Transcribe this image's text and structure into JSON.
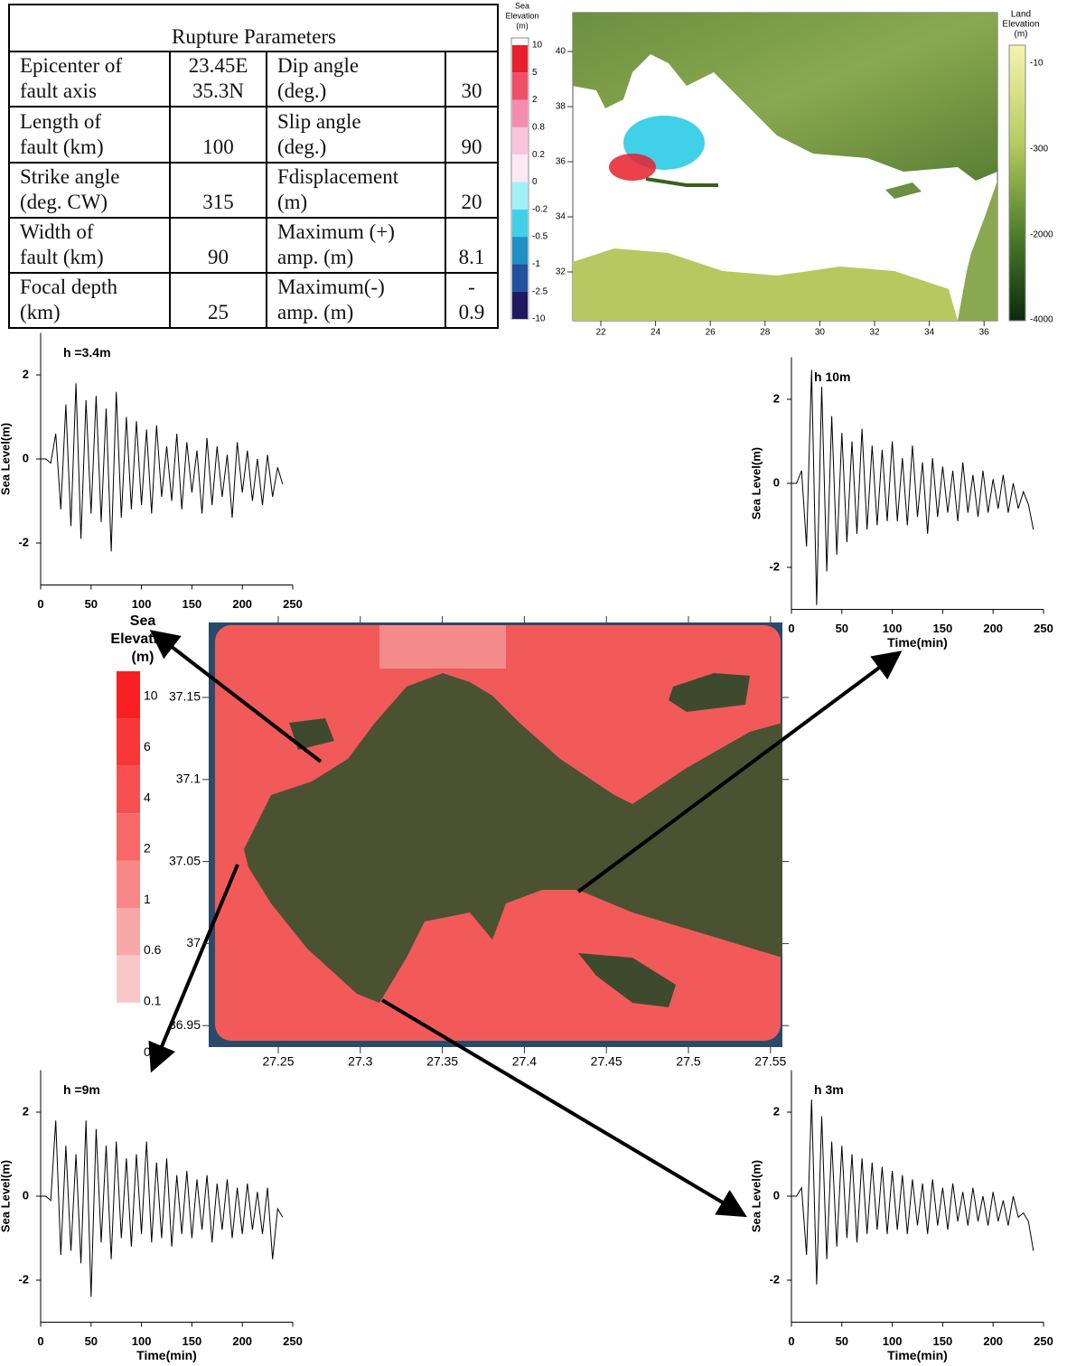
{
  "table": {
    "title": "Rupture Parameters",
    "rows": [
      [
        [
          "Epicenter of",
          "fault axis"
        ],
        [
          "23.45E",
          "35.3N"
        ],
        [
          "Dip angle",
          "(deg.)"
        ],
        [
          "30"
        ]
      ],
      [
        [
          "Length of",
          "fault (km)"
        ],
        [
          "100"
        ],
        [
          "Slip angle",
          "(deg.)"
        ],
        [
          "90"
        ]
      ],
      [
        [
          "Strike angle",
          "(deg. CW)"
        ],
        [
          "315"
        ],
        [
          "Fdisplacement",
          "(m)"
        ],
        [
          "20"
        ]
      ],
      [
        [
          "Width of",
          "fault (km)"
        ],
        [
          "90"
        ],
        [
          "Maximum (+)",
          "amp. (m)"
        ],
        [
          "8.1"
        ]
      ],
      [
        [
          "Focal depth",
          "(km)"
        ],
        [
          "25"
        ],
        [
          "Maximum(-)",
          "amp. (m)"
        ],
        [
          "-",
          "0.9"
        ]
      ]
    ]
  },
  "regional_map": {
    "sea_legend_title": [
      "Sea",
      "Elevation",
      "(m)"
    ],
    "sea_legend_labels": [
      "10",
      "5",
      "2",
      "0.8",
      "0.2",
      "0",
      "-0.2",
      "-0.5",
      "-1",
      "-2.5",
      "-10"
    ],
    "sea_legend_colors": [
      "#e8202c",
      "#f0506a",
      "#f48cb0",
      "#f8c4dc",
      "#fce8f2",
      "#a0f0f8",
      "#40d0e8",
      "#2090c8",
      "#2050a0",
      "#201860"
    ],
    "land_legend_title": [
      "Land",
      "Elevation",
      "(m)"
    ],
    "land_legend_labels": [
      "-10",
      "-300",
      "-2000",
      "-4000"
    ],
    "yticks": [
      "40",
      "38",
      "36",
      "34",
      "32"
    ],
    "xticks": [
      "22",
      "24",
      "26",
      "28",
      "30",
      "32",
      "34",
      "36"
    ]
  },
  "local_map": {
    "legend_title": [
      "Sea",
      "Elevation",
      "(m)"
    ],
    "legend_labels": [
      "10",
      "6",
      "4",
      "2",
      "1",
      "0.6",
      "0.1",
      "0"
    ],
    "legend_colors": [
      "#f82020",
      "#f83838",
      "#f85050",
      "#f86868",
      "#f88888",
      "#f8a8a8",
      "#f8c8c8"
    ],
    "yticks": [
      "37.15",
      "37.1",
      "37.05",
      "37",
      "36.95"
    ],
    "xticks": [
      "27.25",
      "27.3",
      "27.35",
      "27.4",
      "27.45",
      "27.5",
      "27.55"
    ]
  },
  "chart_data": [
    {
      "type": "line",
      "title": "h =3.4m",
      "ylabel": "Sea Level(m)",
      "color": "#000000",
      "x": [
        0,
        5,
        10,
        15,
        20,
        25,
        30,
        35,
        40,
        45,
        50,
        55,
        60,
        65,
        70,
        75,
        80,
        85,
        90,
        95,
        100,
        105,
        110,
        115,
        120,
        125,
        130,
        135,
        140,
        145,
        150,
        155,
        160,
        165,
        170,
        175,
        180,
        185,
        190,
        195,
        200,
        205,
        210,
        215,
        220,
        225,
        230,
        235,
        240
      ],
      "values": [
        0,
        0,
        -0.1,
        0.6,
        -1.2,
        1.3,
        -1.6,
        1.8,
        -1.9,
        1.4,
        -1.3,
        1.5,
        -1.5,
        1.2,
        -2.2,
        1.6,
        -1.4,
        1.0,
        -1.2,
        0.9,
        -1.1,
        0.7,
        -1.3,
        0.8,
        -0.9,
        0.3,
        -1.0,
        0.6,
        -1.2,
        0.4,
        -0.8,
        0.2,
        -1.3,
        0.5,
        -1.1,
        0.3,
        -0.9,
        0.1,
        -1.4,
        0.4,
        -0.8,
        0.2,
        -1.0,
        0.0,
        -1.1,
        0.1,
        -0.9,
        -0.2,
        -0.6
      ],
      "xlim": [
        0,
        250
      ],
      "xticks": [
        0,
        50,
        100,
        150,
        200,
        250
      ],
      "ylim": [
        -3,
        3
      ],
      "yticks": [
        -2,
        0,
        2
      ]
    },
    {
      "type": "line",
      "title": "h 10m",
      "xlabel": "Time(min)",
      "ylabel": "Sea Level(m)",
      "color": "#000000",
      "x": [
        0,
        5,
        10,
        15,
        20,
        25,
        30,
        35,
        40,
        45,
        50,
        55,
        60,
        65,
        70,
        75,
        80,
        85,
        90,
        95,
        100,
        105,
        110,
        115,
        120,
        125,
        130,
        135,
        140,
        145,
        150,
        155,
        160,
        165,
        170,
        175,
        180,
        185,
        190,
        195,
        200,
        205,
        210,
        215,
        220,
        225,
        230,
        235,
        240
      ],
      "values": [
        0,
        0,
        0.3,
        -1.5,
        2.7,
        -2.9,
        2.3,
        -2.1,
        1.6,
        -1.7,
        1.2,
        -1.4,
        1.0,
        -1.2,
        1.3,
        -1.1,
        0.9,
        -1.0,
        0.8,
        -0.9,
        1.0,
        -0.9,
        0.6,
        -1.0,
        0.9,
        -0.8,
        0.5,
        -1.2,
        0.6,
        -0.8,
        0.4,
        -0.7,
        0.3,
        -0.9,
        0.5,
        -0.7,
        0.2,
        -0.8,
        0.3,
        -0.7,
        0.1,
        -0.6,
        0.2,
        -0.7,
        0.0,
        -0.6,
        -0.2,
        -0.5,
        -1.1
      ],
      "xlim": [
        0,
        250
      ],
      "xticks": [
        0,
        50,
        100,
        150,
        200,
        250
      ],
      "ylim": [
        -3,
        3
      ],
      "yticks": [
        -2,
        0,
        2
      ]
    },
    {
      "type": "line",
      "title": "h =9m",
      "xlabel": "Time(min)",
      "ylabel": "Sea Level(m)",
      "color": "#000000",
      "x": [
        0,
        5,
        10,
        15,
        20,
        25,
        30,
        35,
        40,
        45,
        50,
        55,
        60,
        65,
        70,
        75,
        80,
        85,
        90,
        95,
        100,
        105,
        110,
        115,
        120,
        125,
        130,
        135,
        140,
        145,
        150,
        155,
        160,
        165,
        170,
        175,
        180,
        185,
        190,
        195,
        200,
        205,
        210,
        215,
        220,
        225,
        230,
        235,
        240
      ],
      "values": [
        0,
        0,
        -0.1,
        1.8,
        -1.4,
        1.2,
        -1.3,
        1.0,
        -1.6,
        1.8,
        -2.4,
        1.6,
        -1.1,
        1.2,
        -1.5,
        1.3,
        -1.0,
        0.9,
        -1.2,
        1.0,
        -0.9,
        1.3,
        -1.1,
        0.8,
        -1.0,
        0.9,
        -1.2,
        0.5,
        -0.9,
        0.6,
        -1.0,
        0.4,
        -0.8,
        0.5,
        -1.1,
        0.3,
        -0.8,
        0.4,
        -1.0,
        0.2,
        -0.9,
        0.3,
        -0.8,
        0.1,
        -0.9,
        0.2,
        -1.5,
        -0.3,
        -0.5
      ],
      "xlim": [
        0,
        250
      ],
      "xticks": [
        0,
        50,
        100,
        150,
        200,
        250
      ],
      "ylim": [
        -3,
        3
      ],
      "yticks": [
        -2,
        0,
        2
      ]
    },
    {
      "type": "line",
      "title": "h 3m",
      "xlabel": "Time(min)",
      "ylabel": "Sea Level(m)",
      "color": "#000000",
      "x": [
        0,
        5,
        10,
        15,
        20,
        25,
        30,
        35,
        40,
        45,
        50,
        55,
        60,
        65,
        70,
        75,
        80,
        85,
        90,
        95,
        100,
        105,
        110,
        115,
        120,
        125,
        130,
        135,
        140,
        145,
        150,
        155,
        160,
        165,
        170,
        175,
        180,
        185,
        190,
        195,
        200,
        205,
        210,
        215,
        220,
        225,
        230,
        235,
        240
      ],
      "values": [
        0,
        0,
        0.2,
        -1.4,
        2.3,
        -2.1,
        1.9,
        -1.5,
        1.3,
        -1.2,
        1.2,
        -1.0,
        1.0,
        -1.1,
        0.9,
        -0.9,
        0.8,
        -0.8,
        0.7,
        -0.9,
        0.6,
        -0.8,
        0.5,
        -0.9,
        0.4,
        -0.7,
        0.3,
        -0.9,
        0.4,
        -0.7,
        0.2,
        -0.8,
        0.3,
        -0.6,
        0.1,
        -0.7,
        0.2,
        -0.6,
        0.0,
        -0.7,
        0.1,
        -0.6,
        -0.1,
        -0.7,
        0.0,
        -0.5,
        -0.4,
        -0.6,
        -1.3
      ],
      "xlim": [
        0,
        250
      ],
      "xticks": [
        0,
        50,
        100,
        150,
        200,
        250
      ],
      "ylim": [
        -3,
        3
      ],
      "yticks": [
        -2,
        0,
        2
      ]
    }
  ]
}
